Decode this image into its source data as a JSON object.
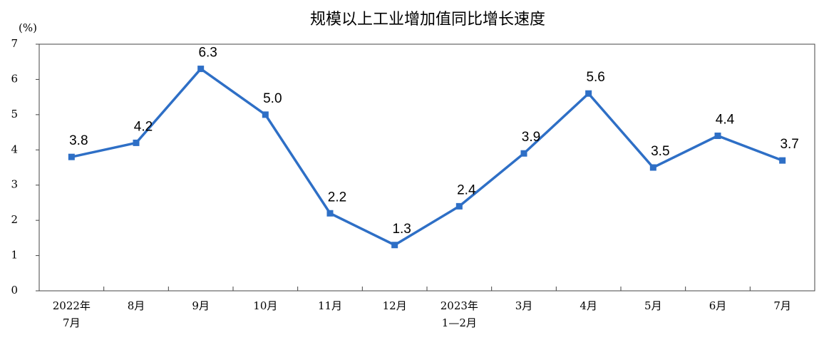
{
  "chart_data": {
    "type": "line",
    "title": "规模以上工业增加值同比增长速度",
    "y_label": "(%)",
    "categories": [
      "2022年\n7月",
      "8月",
      "9月",
      "10月",
      "11月",
      "12月",
      "2023年\n1—2月",
      "3月",
      "4月",
      "5月",
      "6月",
      "7月"
    ],
    "series": [
      {
        "name": "规模以上工业增加值同比增长速度",
        "color": "#2e6fc6",
        "values": [
          3.8,
          4.2,
          6.3,
          5.0,
          2.2,
          1.3,
          2.4,
          3.9,
          5.6,
          3.5,
          4.4,
          3.7
        ],
        "value_labels": [
          "3.8",
          "4.2",
          "6.3",
          "5.0",
          "2.2",
          "1.3",
          "2.4",
          "3.9",
          "5.6",
          "3.5",
          "4.4",
          "3.7"
        ]
      }
    ],
    "ylim": [
      0,
      7
    ],
    "yticks": [
      0,
      1,
      2,
      3,
      4,
      5,
      6,
      7
    ],
    "grid": false
  }
}
